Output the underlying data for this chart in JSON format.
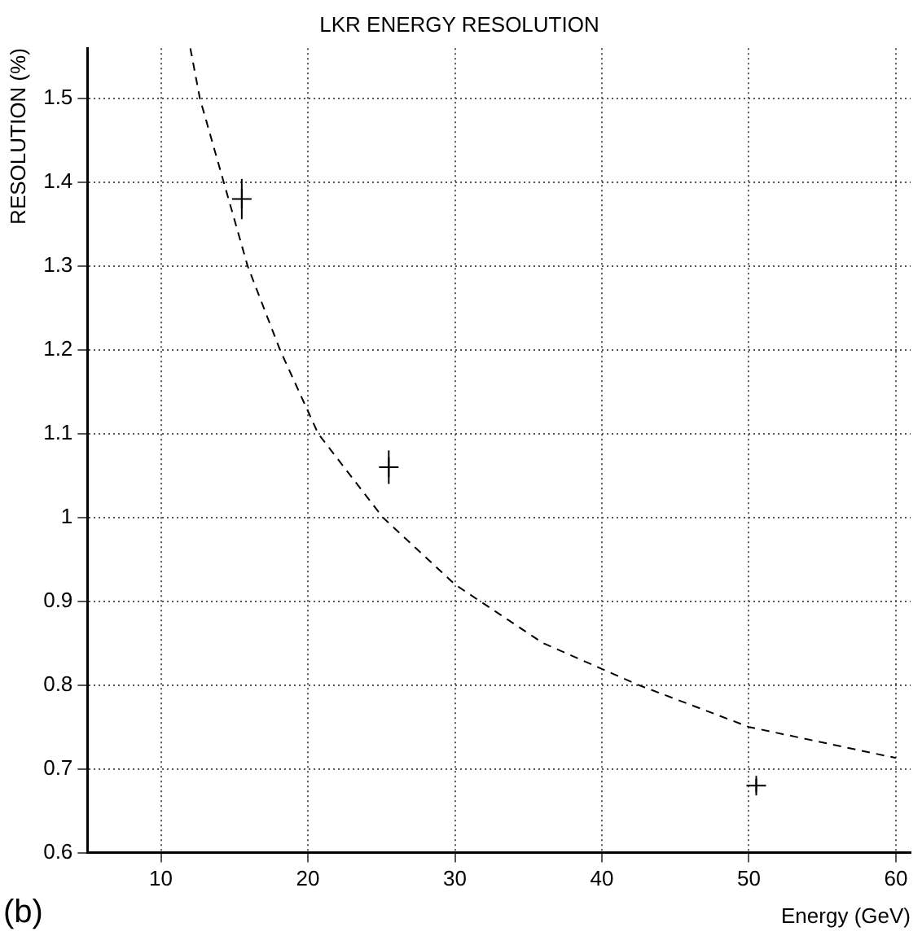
{
  "chart_data": {
    "type": "scatter",
    "title": "LKR ENERGY RESOLUTION",
    "xlabel": "Energy (GeV)",
    "ylabel": "RESOLUTION (%)",
    "annotations": [
      "(b)"
    ],
    "xlim": [
      5,
      61
    ],
    "xticks": [
      10,
      20,
      30,
      40,
      50,
      60
    ],
    "ylim": [
      0.6,
      1.56
    ],
    "yticks": [
      0.6,
      0.7,
      0.8,
      0.9,
      1,
      1.1,
      1.2,
      1.3,
      1.4,
      1.5
    ],
    "grid": true,
    "legend": false,
    "marker": "cross",
    "series": [
      {
        "type": "scatter",
        "color": "#000000",
        "x": [
          15.5,
          25.5,
          50.5
        ],
        "values": [
          1.38,
          1.06,
          0.68
        ],
        "errors": [
          0.024,
          0.02,
          0.008
        ]
      },
      {
        "type": "line",
        "color": "#000000",
        "line_style": "dashed",
        "marker": "none",
        "x": [
          12,
          12.65,
          15.9,
          18.1,
          20.7,
          25.1,
          30,
          36,
          42.5,
          50,
          60
        ],
        "values": [
          1.56,
          1.5,
          1.3,
          1.2,
          1.1,
          1,
          0.92,
          0.85,
          0.8,
          0.75,
          0.713
        ]
      }
    ]
  }
}
